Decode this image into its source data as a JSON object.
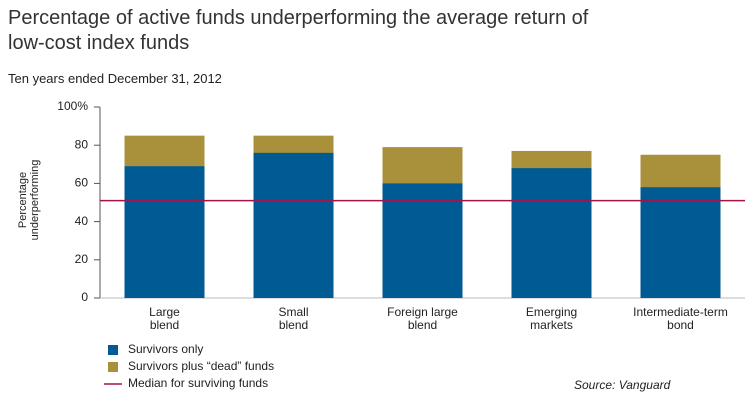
{
  "chart_data": {
    "type": "bar",
    "title": "Percentage of active funds underperforming the average return of low-cost index funds",
    "subtitle": "Ten years ended December 31, 2012",
    "y_label": "Percentage underperforming",
    "source": "Source: Vanguard",
    "categories": [
      "Large blend",
      "Small blend",
      "Foreign large blend",
      "Emerging markets",
      "Intermediate-term bond"
    ],
    "series": [
      {
        "name": "Survivors plus “dead” funds",
        "color": "#a8913a",
        "values": [
          85,
          85,
          79,
          77,
          75
        ]
      },
      {
        "name": "Survivors only",
        "color": "#005a94",
        "values": [
          69,
          76,
          60,
          68,
          58
        ]
      }
    ],
    "reference_line": {
      "name": "Median for surviving funds",
      "color": "#a1154a",
      "value": 51
    },
    "ylim": [
      0,
      100
    ],
    "yticks": [
      0,
      20,
      40,
      60,
      80,
      {
        "value": 100,
        "label": "100%"
      }
    ]
  }
}
